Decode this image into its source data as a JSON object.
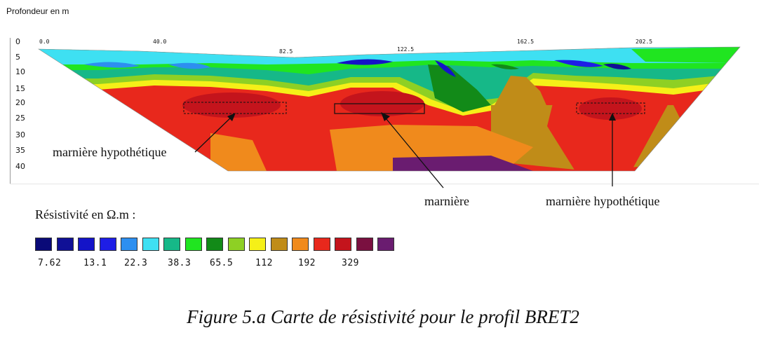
{
  "depth_axis": {
    "title": "Profondeur en m",
    "ticks": [
      "0",
      "5",
      "10",
      "15",
      "20",
      "25",
      "30",
      "35",
      "40"
    ]
  },
  "distance_axis": {
    "ticks": [
      "0.0",
      "40.0",
      "82.5",
      "122.5",
      "162.5",
      "202.5"
    ]
  },
  "annotations": {
    "left": "marnière hypothétique",
    "center": "marnière",
    "right": "marnière hypothétique"
  },
  "legend": {
    "title": "Résistivité en Ω.m :",
    "colors": [
      "#0a0a78",
      "#101096",
      "#1414c8",
      "#1e1ee6",
      "#2d8ff0",
      "#3ee0f2",
      "#16b888",
      "#20e520",
      "#128a18",
      "#8ed024",
      "#f5f018",
      "#c08c18",
      "#f08a1c",
      "#e8281c",
      "#c4141c",
      "#7a1040",
      "#6a1c70"
    ],
    "labels": [
      "7.62",
      "13.1",
      "22.3",
      "38.3",
      "65.5",
      "112",
      "192",
      "329"
    ]
  },
  "caption": "Figure 5.a  Carte de résistivité pour le profil BRET2"
}
